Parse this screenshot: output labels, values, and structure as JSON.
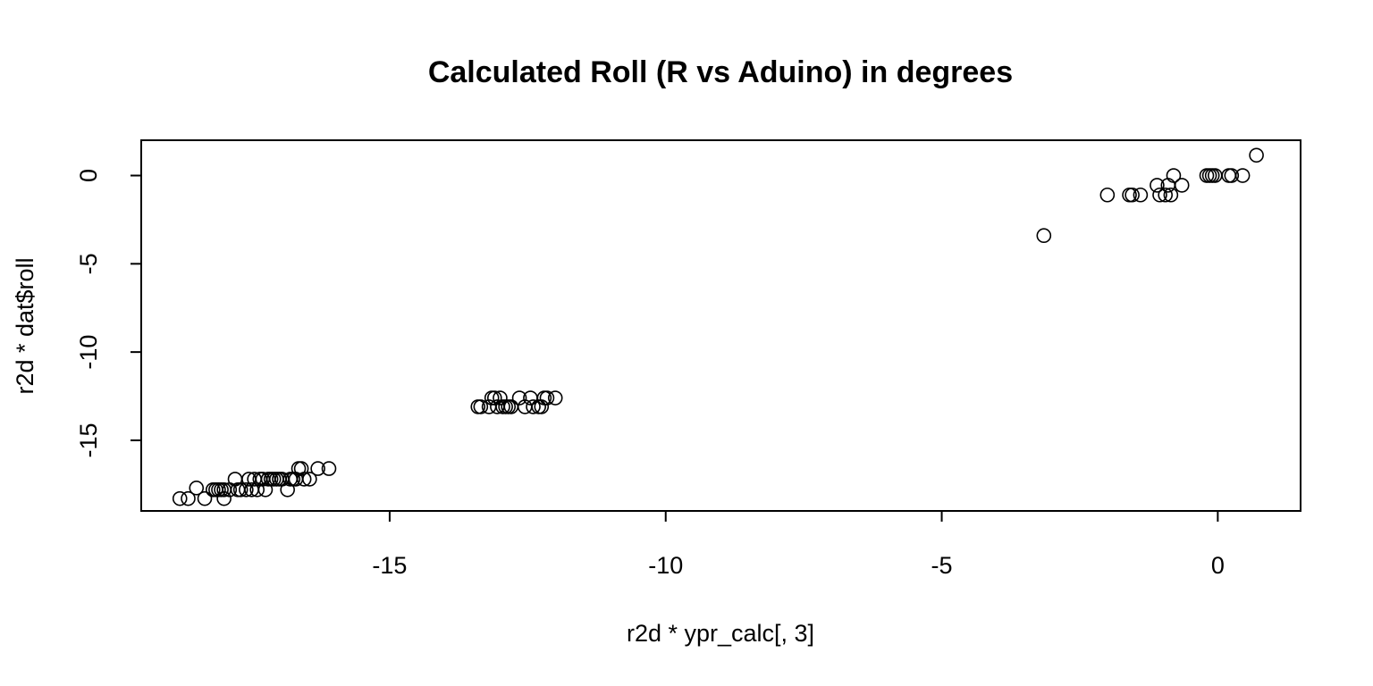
{
  "chart_data": {
    "type": "scatter",
    "title": "Calculated Roll (R vs Aduino) in degrees",
    "xlabel": "r2d * ypr_calc[, 3]",
    "ylabel": "r2d * dat$roll",
    "xlim": [
      -19.5,
      1.5
    ],
    "ylim": [
      -19.0,
      2.0
    ],
    "xticks": [
      -15,
      -10,
      -5,
      0
    ],
    "yticks": [
      0,
      -5,
      -10,
      -15
    ],
    "grid": false,
    "legend": "none",
    "points": [
      {
        "x": -18.8,
        "y": -18.3
      },
      {
        "x": -18.65,
        "y": -18.3
      },
      {
        "x": -18.5,
        "y": -17.7
      },
      {
        "x": -18.35,
        "y": -18.3
      },
      {
        "x": -18.2,
        "y": -17.8
      },
      {
        "x": -18.15,
        "y": -17.8
      },
      {
        "x": -18.1,
        "y": -17.8
      },
      {
        "x": -18.05,
        "y": -17.8
      },
      {
        "x": -18.0,
        "y": -18.3
      },
      {
        "x": -18.0,
        "y": -17.8
      },
      {
        "x": -17.9,
        "y": -17.8
      },
      {
        "x": -17.8,
        "y": -17.2
      },
      {
        "x": -17.75,
        "y": -17.8
      },
      {
        "x": -17.7,
        "y": -17.8
      },
      {
        "x": -17.6,
        "y": -17.8
      },
      {
        "x": -17.55,
        "y": -17.2
      },
      {
        "x": -17.5,
        "y": -17.8
      },
      {
        "x": -17.45,
        "y": -17.2
      },
      {
        "x": -17.4,
        "y": -17.8
      },
      {
        "x": -17.35,
        "y": -17.2
      },
      {
        "x": -17.3,
        "y": -17.2
      },
      {
        "x": -17.25,
        "y": -17.8
      },
      {
        "x": -17.2,
        "y": -17.2
      },
      {
        "x": -17.15,
        "y": -17.2
      },
      {
        "x": -17.1,
        "y": -17.2
      },
      {
        "x": -17.05,
        "y": -17.2
      },
      {
        "x": -17.0,
        "y": -17.2
      },
      {
        "x": -16.95,
        "y": -17.2
      },
      {
        "x": -16.85,
        "y": -17.8
      },
      {
        "x": -16.8,
        "y": -17.2
      },
      {
        "x": -16.75,
        "y": -17.2
      },
      {
        "x": -16.7,
        "y": -17.2
      },
      {
        "x": -16.65,
        "y": -16.6
      },
      {
        "x": -16.6,
        "y": -16.6
      },
      {
        "x": -16.55,
        "y": -17.2
      },
      {
        "x": -16.45,
        "y": -17.2
      },
      {
        "x": -16.3,
        "y": -16.6
      },
      {
        "x": -16.1,
        "y": -16.6
      },
      {
        "x": -13.4,
        "y": -13.1
      },
      {
        "x": -13.35,
        "y": -13.1
      },
      {
        "x": -13.2,
        "y": -13.1
      },
      {
        "x": -13.15,
        "y": -12.6
      },
      {
        "x": -13.1,
        "y": -12.6
      },
      {
        "x": -13.05,
        "y": -13.1
      },
      {
        "x": -13.0,
        "y": -12.6
      },
      {
        "x": -12.95,
        "y": -13.1
      },
      {
        "x": -12.9,
        "y": -13.1
      },
      {
        "x": -12.85,
        "y": -13.1
      },
      {
        "x": -12.8,
        "y": -13.1
      },
      {
        "x": -12.65,
        "y": -12.6
      },
      {
        "x": -12.55,
        "y": -13.1
      },
      {
        "x": -12.45,
        "y": -12.6
      },
      {
        "x": -12.4,
        "y": -13.1
      },
      {
        "x": -12.3,
        "y": -13.1
      },
      {
        "x": -12.25,
        "y": -13.1
      },
      {
        "x": -12.2,
        "y": -12.6
      },
      {
        "x": -12.15,
        "y": -12.6
      },
      {
        "x": -12.0,
        "y": -12.6
      },
      {
        "x": -3.15,
        "y": -3.4
      },
      {
        "x": -2.0,
        "y": -1.1
      },
      {
        "x": -1.6,
        "y": -1.1
      },
      {
        "x": -1.55,
        "y": -1.1
      },
      {
        "x": -1.4,
        "y": -1.1
      },
      {
        "x": -1.1,
        "y": -0.55
      },
      {
        "x": -1.05,
        "y": -1.1
      },
      {
        "x": -0.95,
        "y": -1.1
      },
      {
        "x": -0.9,
        "y": -0.55
      },
      {
        "x": -0.85,
        "y": -1.1
      },
      {
        "x": -0.8,
        "y": 0.0
      },
      {
        "x": -0.65,
        "y": -0.55
      },
      {
        "x": -0.2,
        "y": 0.0
      },
      {
        "x": -0.15,
        "y": 0.0
      },
      {
        "x": -0.1,
        "y": 0.0
      },
      {
        "x": -0.05,
        "y": 0.0
      },
      {
        "x": 0.2,
        "y": 0.0
      },
      {
        "x": 0.25,
        "y": 0.0
      },
      {
        "x": 0.45,
        "y": 0.0
      },
      {
        "x": 0.7,
        "y": 1.15
      }
    ]
  }
}
